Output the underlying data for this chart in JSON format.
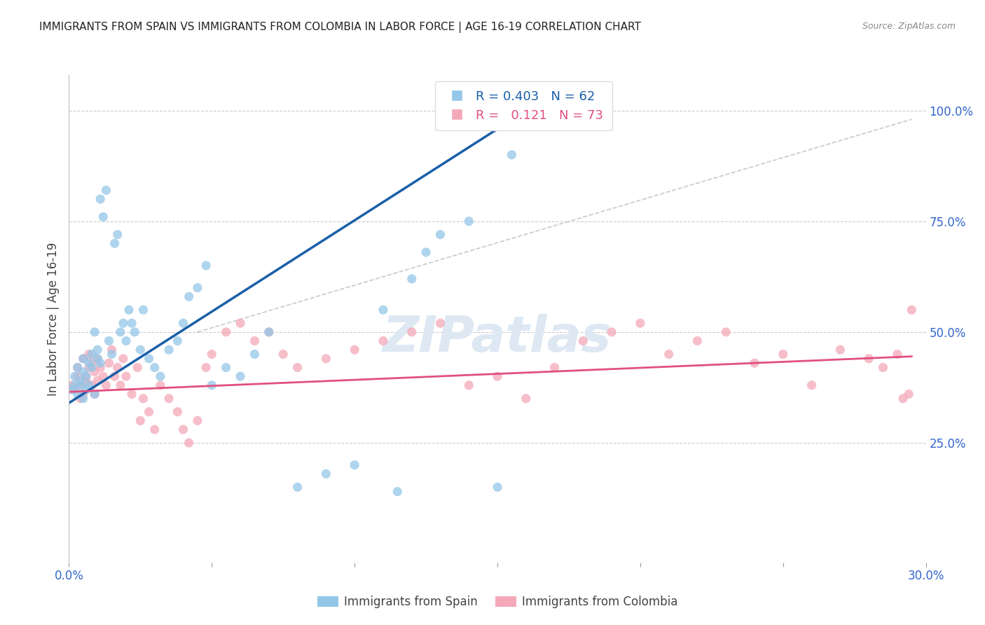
{
  "title": "IMMIGRANTS FROM SPAIN VS IMMIGRANTS FROM COLOMBIA IN LABOR FORCE | AGE 16-19 CORRELATION CHART",
  "source": "Source: ZipAtlas.com",
  "ylabel": "In Labor Force | Age 16-19",
  "xlim": [
    0.0,
    0.3
  ],
  "ylim": [
    -0.02,
    1.08
  ],
  "spain_R": 0.403,
  "spain_N": 62,
  "colombia_R": 0.121,
  "colombia_N": 73,
  "spain_color": "#94c6e8",
  "colombia_color": "#f4a8b8",
  "spain_line_color": "#1a5fa8",
  "colombia_line_color": "#e05080",
  "reference_line_color": "#bbbbbb",
  "watermark_color": "#dde8f3",
  "background_color": "#ffffff",
  "spain_x": [
    0.001,
    0.002,
    0.002,
    0.003,
    0.003,
    0.004,
    0.004,
    0.005,
    0.005,
    0.005,
    0.006,
    0.006,
    0.007,
    0.007,
    0.008,
    0.008,
    0.009,
    0.009,
    0.01,
    0.01,
    0.011,
    0.011,
    0.012,
    0.013,
    0.014,
    0.015,
    0.016,
    0.017,
    0.018,
    0.019,
    0.02,
    0.021,
    0.022,
    0.023,
    0.025,
    0.026,
    0.028,
    0.03,
    0.032,
    0.035,
    0.038,
    0.04,
    0.042,
    0.045,
    0.048,
    0.05,
    0.055,
    0.06,
    0.065,
    0.07,
    0.08,
    0.09,
    0.1,
    0.11,
    0.115,
    0.12,
    0.125,
    0.13,
    0.14,
    0.15,
    0.155,
    0.16
  ],
  "spain_y": [
    0.37,
    0.38,
    0.4,
    0.36,
    0.42,
    0.38,
    0.39,
    0.35,
    0.41,
    0.44,
    0.37,
    0.4,
    0.43,
    0.38,
    0.42,
    0.45,
    0.36,
    0.5,
    0.44,
    0.46,
    0.43,
    0.8,
    0.76,
    0.82,
    0.48,
    0.45,
    0.7,
    0.72,
    0.5,
    0.52,
    0.48,
    0.55,
    0.52,
    0.5,
    0.46,
    0.55,
    0.44,
    0.42,
    0.4,
    0.46,
    0.48,
    0.52,
    0.58,
    0.6,
    0.65,
    0.38,
    0.42,
    0.4,
    0.45,
    0.5,
    0.15,
    0.18,
    0.2,
    0.55,
    0.14,
    0.62,
    0.68,
    0.72,
    0.75,
    0.15,
    0.9,
    1.0
  ],
  "colombia_x": [
    0.001,
    0.002,
    0.003,
    0.003,
    0.004,
    0.004,
    0.005,
    0.005,
    0.006,
    0.006,
    0.007,
    0.007,
    0.008,
    0.008,
    0.009,
    0.009,
    0.01,
    0.01,
    0.011,
    0.012,
    0.013,
    0.014,
    0.015,
    0.016,
    0.017,
    0.018,
    0.019,
    0.02,
    0.022,
    0.024,
    0.025,
    0.026,
    0.028,
    0.03,
    0.032,
    0.035,
    0.038,
    0.04,
    0.042,
    0.045,
    0.048,
    0.05,
    0.055,
    0.06,
    0.065,
    0.07,
    0.075,
    0.08,
    0.09,
    0.1,
    0.11,
    0.12,
    0.13,
    0.14,
    0.15,
    0.16,
    0.17,
    0.18,
    0.19,
    0.2,
    0.21,
    0.22,
    0.23,
    0.24,
    0.25,
    0.26,
    0.27,
    0.28,
    0.285,
    0.29,
    0.292,
    0.294,
    0.295
  ],
  "colombia_y": [
    0.38,
    0.37,
    0.4,
    0.42,
    0.35,
    0.38,
    0.36,
    0.44,
    0.4,
    0.39,
    0.42,
    0.45,
    0.38,
    0.43,
    0.36,
    0.41,
    0.39,
    0.44,
    0.42,
    0.4,
    0.38,
    0.43,
    0.46,
    0.4,
    0.42,
    0.38,
    0.44,
    0.4,
    0.36,
    0.42,
    0.3,
    0.35,
    0.32,
    0.28,
    0.38,
    0.35,
    0.32,
    0.28,
    0.25,
    0.3,
    0.42,
    0.45,
    0.5,
    0.52,
    0.48,
    0.5,
    0.45,
    0.42,
    0.44,
    0.46,
    0.48,
    0.5,
    0.52,
    0.38,
    0.4,
    0.35,
    0.42,
    0.48,
    0.5,
    0.52,
    0.45,
    0.48,
    0.5,
    0.43,
    0.45,
    0.38,
    0.46,
    0.44,
    0.42,
    0.45,
    0.35,
    0.36,
    0.55
  ],
  "spain_trend_x": [
    0.0,
    0.165
  ],
  "spain_trend_y": [
    0.34,
    1.02
  ],
  "colombia_trend_x": [
    0.0,
    0.295
  ],
  "colombia_trend_y": [
    0.365,
    0.445
  ],
  "ref_line_x": [
    0.045,
    0.295
  ],
  "ref_line_y": [
    0.5,
    0.98
  ]
}
